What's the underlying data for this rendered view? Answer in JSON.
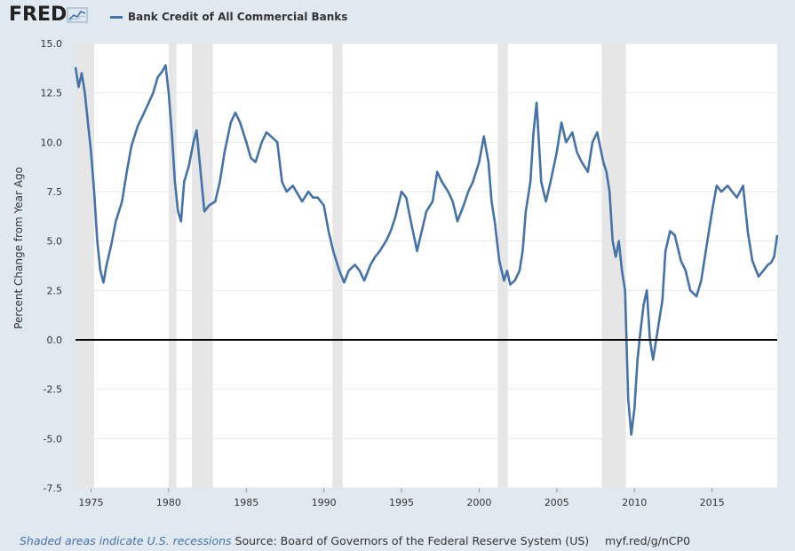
{
  "header": {
    "logo_text": "FRED",
    "logo_icon": "trend-chart-icon",
    "legend_label": "Bank Credit of All Commercial Banks"
  },
  "footer": {
    "recession_note": "Shaded areas indicate U.S. recessions",
    "source": "Source: Board of Governors of the Federal Reserve System (US)",
    "short_link": "myf.red/g/nCP0"
  },
  "colors": {
    "background": "#e1e9f0",
    "plot": "#ffffff",
    "series": "#4572a7",
    "recession": "#e6e6e6",
    "zero_line": "#000000"
  },
  "chart_data": {
    "type": "line",
    "title": "",
    "xlabel": "",
    "ylabel": "Percent Change from Year Ago",
    "xlim": [
      1974.0,
      2019.2
    ],
    "ylim": [
      -7.5,
      15.0
    ],
    "yticks": [
      "-7.5",
      "-5.0",
      "-2.5",
      "0.0",
      "2.5",
      "5.0",
      "7.5",
      "10.0",
      "12.5",
      "15.0"
    ],
    "xticks": [
      "1975",
      "1980",
      "1985",
      "1990",
      "1995",
      "2000",
      "2005",
      "2010",
      "2015"
    ],
    "grid": true,
    "recessions": [
      [
        1974.0,
        1975.2
      ],
      [
        1980.0,
        1980.5
      ],
      [
        1981.5,
        1982.85
      ],
      [
        1990.55,
        1991.2
      ],
      [
        2001.2,
        2001.85
      ],
      [
        2007.9,
        2009.45
      ]
    ],
    "series": [
      {
        "name": "Bank Credit of All Commercial Banks",
        "x": [
          1974.0,
          1974.2,
          1974.4,
          1974.6,
          1974.8,
          1975.0,
          1975.2,
          1975.4,
          1975.6,
          1975.8,
          1976.0,
          1976.3,
          1976.6,
          1977.0,
          1977.3,
          1977.6,
          1978.0,
          1978.3,
          1978.6,
          1979.0,
          1979.3,
          1979.6,
          1979.8,
          1980.0,
          1980.2,
          1980.4,
          1980.6,
          1980.8,
          1981.0,
          1981.3,
          1981.6,
          1981.8,
          1982.0,
          1982.3,
          1982.6,
          1983.0,
          1983.3,
          1983.6,
          1984.0,
          1984.3,
          1984.6,
          1985.0,
          1985.3,
          1985.6,
          1986.0,
          1986.3,
          1986.6,
          1987.0,
          1987.3,
          1987.6,
          1988.0,
          1988.3,
          1988.6,
          1989.0,
          1989.3,
          1989.6,
          1990.0,
          1990.3,
          1990.6,
          1991.0,
          1991.3,
          1991.6,
          1992.0,
          1992.3,
          1992.6,
          1993.0,
          1993.3,
          1993.6,
          1994.0,
          1994.3,
          1994.6,
          1995.0,
          1995.3,
          1995.6,
          1996.0,
          1996.3,
          1996.6,
          1997.0,
          1997.3,
          1997.6,
          1998.0,
          1998.3,
          1998.6,
          1999.0,
          1999.3,
          1999.6,
          2000.0,
          2000.3,
          2000.6,
          2000.8,
          2001.0,
          2001.3,
          2001.6,
          2001.8,
          2002.0,
          2002.3,
          2002.6,
          2002.8,
          2003.0,
          2003.3,
          2003.5,
          2003.7,
          2004.0,
          2004.3,
          2004.6,
          2005.0,
          2005.3,
          2005.6,
          2006.0,
          2006.3,
          2006.6,
          2007.0,
          2007.3,
          2007.6,
          2008.0,
          2008.2,
          2008.4,
          2008.6,
          2008.8,
          2009.0,
          2009.2,
          2009.4,
          2009.6,
          2009.8,
          2010.0,
          2010.2,
          2010.4,
          2010.6,
          2010.8,
          2011.0,
          2011.2,
          2011.4,
          2011.6,
          2011.8,
          2012.0,
          2012.3,
          2012.6,
          2013.0,
          2013.3,
          2013.6,
          2014.0,
          2014.3,
          2014.6,
          2015.0,
          2015.3,
          2015.6,
          2016.0,
          2016.3,
          2016.6,
          2017.0,
          2017.3,
          2017.6,
          2018.0,
          2018.3,
          2018.6,
          2018.8,
          2019.0,
          2019.2
        ],
        "y": [
          13.8,
          12.8,
          13.5,
          12.5,
          11.0,
          9.5,
          7.5,
          5.0,
          3.5,
          2.9,
          3.8,
          4.8,
          6.0,
          7.0,
          8.5,
          9.8,
          10.8,
          11.3,
          11.8,
          12.5,
          13.3,
          13.6,
          13.9,
          12.5,
          10.5,
          8.0,
          6.5,
          6.0,
          8.0,
          8.8,
          10.0,
          10.6,
          9.0,
          6.5,
          6.8,
          7.0,
          8.0,
          9.5,
          11.0,
          11.5,
          11.0,
          10.0,
          9.2,
          9.0,
          10.0,
          10.5,
          10.3,
          10.0,
          8.0,
          7.5,
          7.8,
          7.4,
          7.0,
          7.5,
          7.2,
          7.2,
          6.8,
          5.5,
          4.5,
          3.5,
          2.9,
          3.5,
          3.8,
          3.5,
          3.0,
          3.8,
          4.2,
          4.5,
          5.0,
          5.5,
          6.2,
          7.5,
          7.2,
          6.0,
          4.5,
          5.5,
          6.5,
          7.0,
          8.5,
          8.0,
          7.5,
          7.0,
          6.0,
          6.8,
          7.5,
          8.0,
          9.0,
          10.3,
          9.0,
          7.0,
          6.0,
          4.0,
          3.0,
          3.5,
          2.8,
          3.0,
          3.5,
          4.5,
          6.5,
          8.0,
          10.5,
          12.0,
          8.0,
          7.0,
          8.0,
          9.5,
          11.0,
          10.0,
          10.5,
          9.5,
          9.0,
          8.5,
          10.0,
          10.5,
          9.0,
          8.5,
          7.5,
          5.0,
          4.2,
          5.0,
          3.5,
          2.5,
          -3.0,
          -4.8,
          -3.5,
          -1.0,
          0.5,
          1.8,
          2.5,
          0.0,
          -1.0,
          0.0,
          1.0,
          2.0,
          4.5,
          5.5,
          5.3,
          4.0,
          3.5,
          2.5,
          2.2,
          3.0,
          4.5,
          6.5,
          7.8,
          7.5,
          7.8,
          7.5,
          7.2,
          7.8,
          5.5,
          4.0,
          3.2,
          3.5,
          3.8,
          3.9,
          4.2,
          5.3
        ]
      }
    ]
  }
}
